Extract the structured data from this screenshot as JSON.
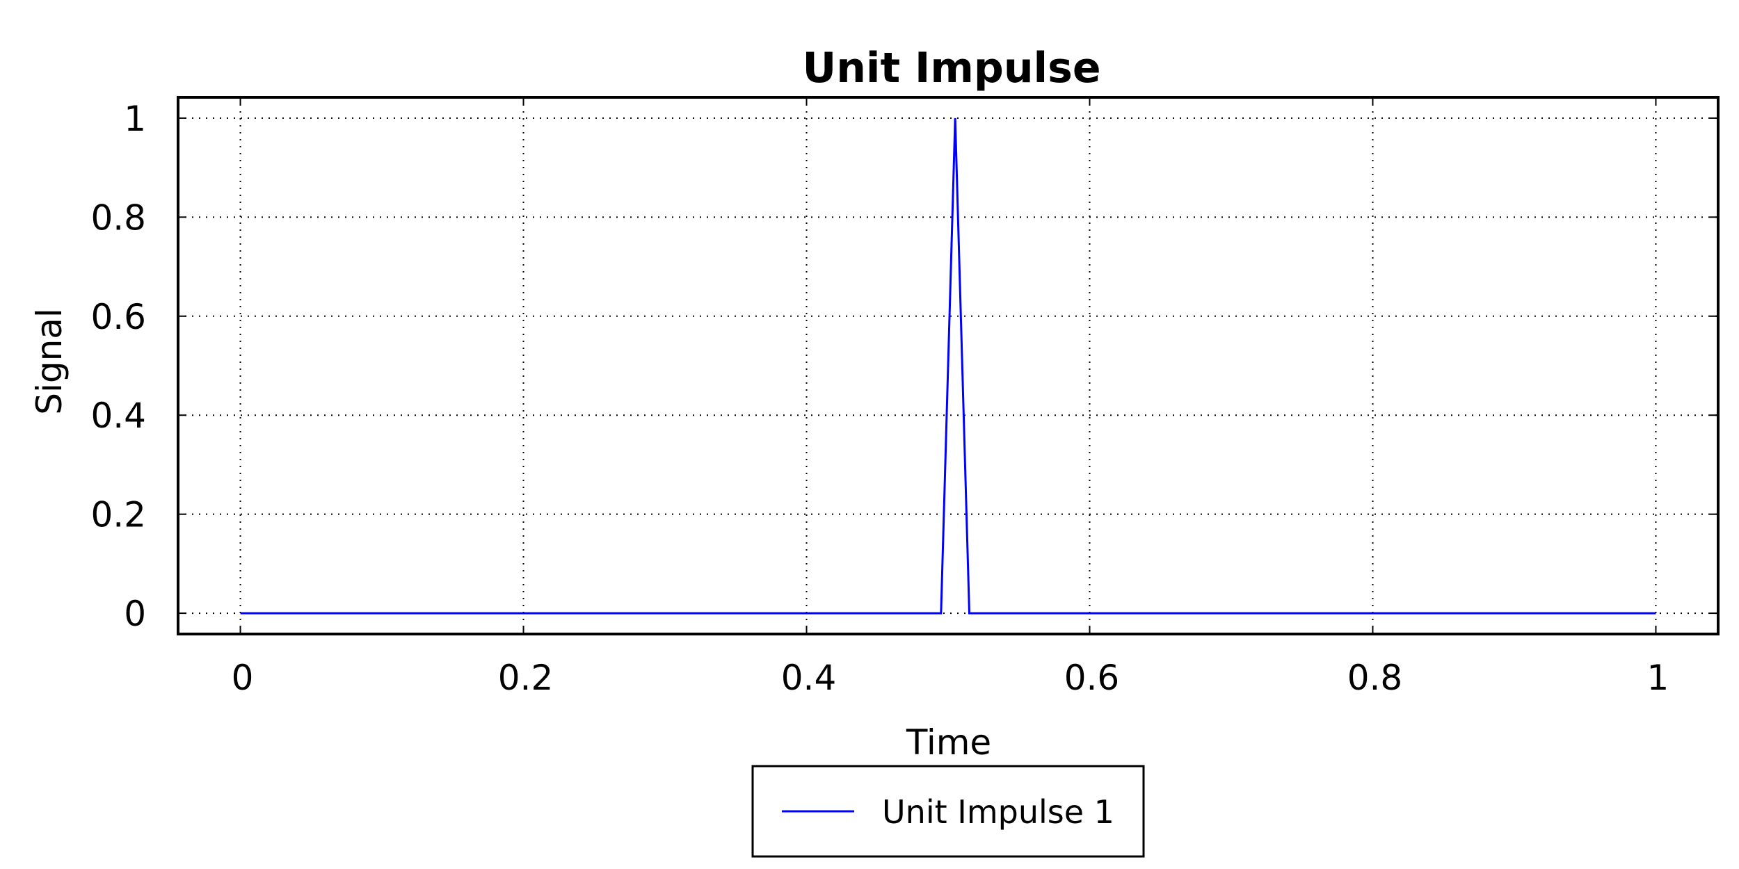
{
  "chart_data": {
    "type": "line",
    "title": "Unit Impulse",
    "xlabel": "Time",
    "ylabel": "Signal",
    "xlim": [
      -0.044,
      1.044
    ],
    "ylim": [
      -0.042,
      1.042
    ],
    "xticks": [
      0,
      0.2,
      0.4,
      0.6,
      0.8,
      1
    ],
    "xtick_labels": [
      "0",
      "0.2",
      "0.4",
      "0.6",
      "0.8",
      "1"
    ],
    "yticks": [
      0,
      0.2,
      0.4,
      0.6,
      0.8,
      1
    ],
    "ytick_labels": [
      "0",
      "0.2",
      "0.4",
      "0.6",
      "0.8",
      "1"
    ],
    "grid": true,
    "legend_position": "bottom-center",
    "series": [
      {
        "name": "Unit Impulse 1",
        "color": "#0000ff",
        "x": [
          0,
          0.495,
          0.505,
          0.515,
          1
        ],
        "y": [
          0,
          0,
          1,
          0,
          0
        ]
      }
    ]
  }
}
